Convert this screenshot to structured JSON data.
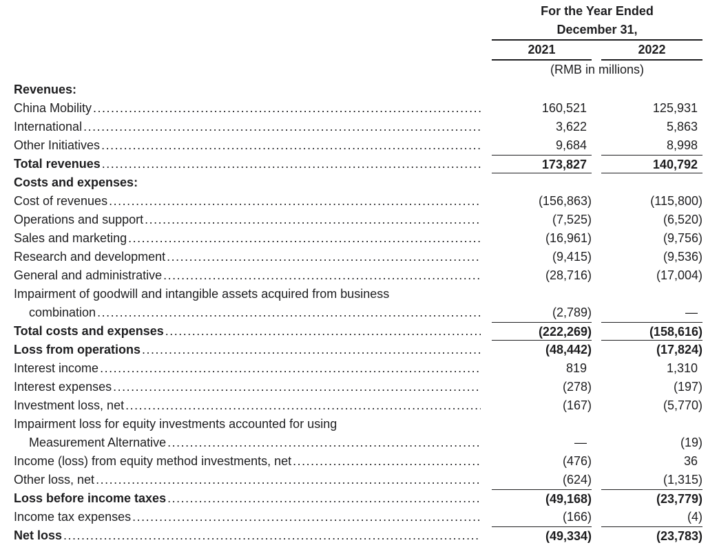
{
  "header": {
    "title_line1": "For the Year Ended",
    "title_line2": "December 31,",
    "col1": "2021",
    "col2": "2022",
    "unit_note": "(RMB in millions)"
  },
  "colors": {
    "background": "#ffffff",
    "text": "#1d1d1f",
    "rule": "#1d1d1f"
  },
  "table": {
    "rows": [
      {
        "label": "Revenues:",
        "bold": true,
        "dots": false,
        "v1": "",
        "v2": ""
      },
      {
        "label": "China Mobility",
        "dots": true,
        "v1": "160,521",
        "v2": "125,931"
      },
      {
        "label": "International",
        "dots": true,
        "v1": "3,622",
        "v2": "5,863"
      },
      {
        "label": "Other Initiatives",
        "dots": true,
        "v1": "9,684",
        "v2": "8,998"
      },
      {
        "label": "Total revenues",
        "bold": true,
        "dots": true,
        "v1": "173,827",
        "v2": "140,792",
        "rule_above": true,
        "rule_below": true
      },
      {
        "label": "Costs and expenses:",
        "bold": true,
        "dots": false,
        "v1": "",
        "v2": ""
      },
      {
        "label": "Cost of revenues",
        "dots": true,
        "v1": "(156,863)",
        "v2": "(115,800)"
      },
      {
        "label": "Operations and support",
        "dots": true,
        "v1": "(7,525)",
        "v2": "(6,520)"
      },
      {
        "label": "Sales and marketing",
        "dots": true,
        "v1": "(16,961)",
        "v2": "(9,756)"
      },
      {
        "label": "Research and development",
        "dots": true,
        "v1": "(9,415)",
        "v2": "(9,536)"
      },
      {
        "label": "General and administrative",
        "dots": true,
        "v1": "(28,716)",
        "v2": "(17,004)"
      },
      {
        "label": "Impairment of goodwill and intangible assets acquired from business",
        "dots": false,
        "v1": "",
        "v2": ""
      },
      {
        "label": "combination",
        "indent": true,
        "dots": true,
        "v1": "(2,789)",
        "v2": "—"
      },
      {
        "label": "Total costs and expenses",
        "bold": true,
        "dots": true,
        "v1": "(222,269)",
        "v2": "(158,616)",
        "rule_above": true,
        "rule_below": true
      },
      {
        "label": "Loss from operations",
        "bold": true,
        "dots": true,
        "v1": "(48,442)",
        "v2": "(17,824)"
      },
      {
        "label": "Interest income",
        "dots": true,
        "v1": "819",
        "v2": "1,310"
      },
      {
        "label": "Interest expenses",
        "dots": true,
        "v1": "(278)",
        "v2": "(197)"
      },
      {
        "label": "Investment loss, net",
        "dots": true,
        "v1": "(167)",
        "v2": "(5,770)"
      },
      {
        "label": "Impairment loss for equity investments accounted for using",
        "dots": false,
        "v1": "",
        "v2": ""
      },
      {
        "label": "Measurement Alternative",
        "indent": true,
        "dots": true,
        "v1": "—",
        "v2": "(19)"
      },
      {
        "label": "Income (loss) from equity method investments, net",
        "dots": true,
        "v1": "(476)",
        "v2": "36"
      },
      {
        "label": "Other loss, net",
        "dots": true,
        "v1": "(624)",
        "v2": "(1,315)"
      },
      {
        "label": "Loss before income taxes",
        "bold": true,
        "dots": true,
        "v1": "(49,168)",
        "v2": "(23,779)",
        "rule_above": true
      },
      {
        "label": "Income tax expenses",
        "dots": true,
        "v1": "(166)",
        "v2": "(4)"
      },
      {
        "label": "Net loss",
        "bold": true,
        "dots": true,
        "v1": "(49,334)",
        "v2": "(23,783)",
        "rule_above": true
      }
    ]
  }
}
